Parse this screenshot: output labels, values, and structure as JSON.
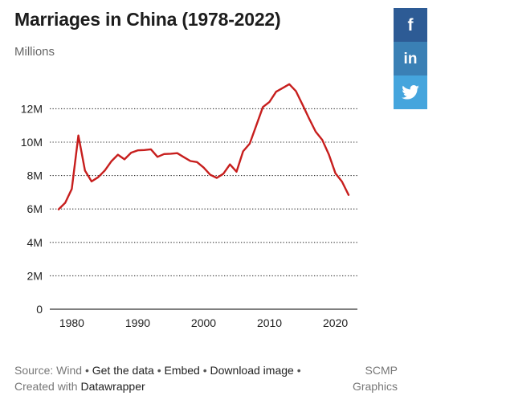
{
  "title": "Marriages in China (1978-2022)",
  "subtitle": "Millions",
  "share": {
    "facebook_icon": "facebook-icon",
    "linkedin_icon": "linkedin-icon",
    "twitter_icon": "twitter-icon",
    "facebook_color": "#2d5b95",
    "linkedin_color": "#3a80b5",
    "twitter_color": "#45a5dd"
  },
  "footer": {
    "source_prefix": "Source: Wind",
    "separator": "•",
    "get_data": "Get the data",
    "embed": "Embed",
    "download": "Download image",
    "created_with": "Created with",
    "datawrapper": "Datawrapper",
    "brand": "SCMP Graphics"
  },
  "chart_data": {
    "type": "line",
    "title": "Marriages in China (1978-2022)",
    "subtitle": "Millions",
    "x": [
      1978,
      1979,
      1980,
      1981,
      1982,
      1983,
      1984,
      1985,
      1986,
      1987,
      1988,
      1989,
      1990,
      1991,
      1992,
      1993,
      1994,
      1995,
      1996,
      1997,
      1998,
      1999,
      2000,
      2001,
      2002,
      2003,
      2004,
      2005,
      2006,
      2007,
      2008,
      2009,
      2010,
      2011,
      2012,
      2013,
      2014,
      2015,
      2016,
      2017,
      2018,
      2019,
      2020,
      2021,
      2022
    ],
    "series": [
      {
        "color": "#c71e1d",
        "values": [
          5.98,
          6.37,
          7.2,
          10.4,
          8.3,
          7.65,
          7.9,
          8.3,
          8.85,
          9.25,
          8.97,
          9.37,
          9.51,
          9.53,
          9.57,
          9.12,
          9.29,
          9.31,
          9.34,
          9.1,
          8.87,
          8.81,
          8.48,
          8.05,
          7.86,
          8.11,
          8.67,
          8.23,
          9.45,
          9.91,
          11.0,
          12.1,
          12.41,
          13.02,
          13.24,
          13.47,
          13.06,
          12.25,
          11.42,
          10.63,
          10.14,
          9.27,
          8.14,
          7.64,
          6.84
        ]
      }
    ],
    "ylim": [
      0,
      13.5
    ],
    "yticks": [
      0,
      2,
      4,
      6,
      8,
      10,
      12
    ],
    "ytick_labels": [
      "0",
      "2M",
      "4M",
      "6M",
      "8M",
      "10M",
      "12M"
    ],
    "xticks": [
      1980,
      1990,
      2000,
      2010,
      2020
    ],
    "xtick_labels": [
      "1980",
      "1990",
      "2000",
      "2010",
      "2020"
    ],
    "grid": "horizontal dotted",
    "legend": "none"
  }
}
